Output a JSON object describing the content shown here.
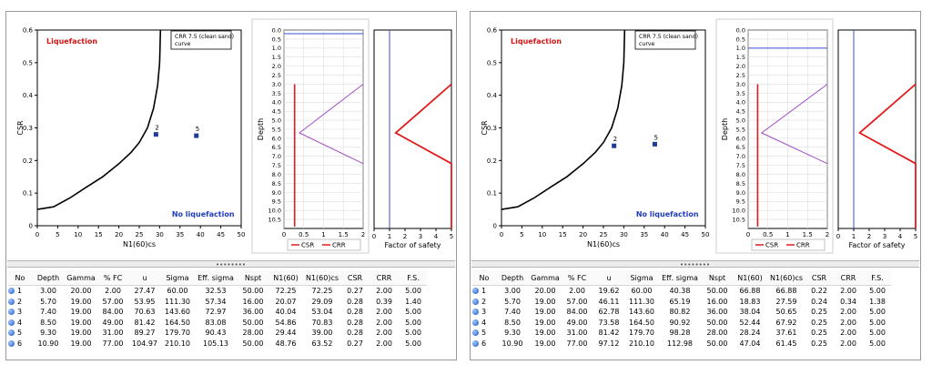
{
  "panels": [
    {
      "id": "left",
      "chart_data": [
        {
          "type": "scatter",
          "title": "",
          "xlabel": "N1(60)cs",
          "ylabel": "CSR",
          "xlim": [
            0,
            50
          ],
          "ylim": [
            0,
            0.6
          ],
          "xticks": [
            "0",
            "5",
            "10",
            "15",
            "20",
            "25",
            "30",
            "35",
            "40",
            "45",
            "50"
          ],
          "yticks": [
            "0",
            "0.1",
            "0.2",
            "0.3",
            "0.4",
            "0.5",
            "0.6"
          ],
          "legend": "CRR 7.5 (clean sand) curve",
          "region_top": "Liquefaction",
          "region_bottom": "No liquefaction",
          "curve": [
            [
              0,
              0.05
            ],
            [
              4,
              0.058
            ],
            [
              8,
              0.085
            ],
            [
              12,
              0.118
            ],
            [
              16,
              0.15
            ],
            [
              20,
              0.19
            ],
            [
              23,
              0.225
            ],
            [
              25,
              0.255
            ],
            [
              27,
              0.3
            ],
            [
              28.5,
              0.36
            ],
            [
              29.5,
              0.43
            ],
            [
              30,
              0.5
            ],
            [
              30.2,
              0.6
            ]
          ],
          "points": [
            {
              "label": "2",
              "x": 29.1,
              "y": 0.28
            },
            {
              "label": "5",
              "x": 39.0,
              "y": 0.276
            }
          ]
        },
        {
          "type": "line",
          "xlabel": "",
          "ylabel": "Depth",
          "xlim": [
            0,
            2
          ],
          "ylim": [
            0,
            11
          ],
          "xticks": [
            "0",
            "0.5",
            "1",
            "1.5",
            "2"
          ],
          "depth_ticks": [
            "0.0",
            "0.5",
            "1.0",
            "1.5",
            "2.0",
            "2.5",
            "3.0",
            "3.5",
            "4.0",
            "4.5",
            "5.0",
            "5.5",
            "6.0",
            "6.5",
            "7.0",
            "7.5",
            "8.0",
            "8.5",
            "9.0",
            "9.5",
            "10.0",
            "10.5"
          ],
          "water_table": 0.2,
          "series": [
            {
              "name": "CSR",
              "color": "#e21a1a",
              "points": [
                [
                  0.27,
                  3.0
                ],
                [
                  0.27,
                  10.9
                ]
              ]
            },
            {
              "name": "CRR",
              "color": "#a04ec4",
              "points": [
                [
                  2.0,
                  3.0
                ],
                [
                  0.39,
                  5.7
                ],
                [
                  2.0,
                  7.4
                ]
              ]
            }
          ],
          "legend_labels": [
            "CSR",
            "CRR"
          ]
        },
        {
          "type": "line",
          "xlabel": "Factor of safety",
          "xlim": [
            0,
            5
          ],
          "ylim": [
            0,
            11
          ],
          "xticks": [
            "0",
            "1",
            "2",
            "3",
            "4",
            "5"
          ],
          "reference_fs": 1.0,
          "series": [
            {
              "name": "F.S.",
              "color": "#e21a1a",
              "points": [
                [
                  5.0,
                  3.0
                ],
                [
                  1.4,
                  5.7
                ],
                [
                  5.0,
                  7.4
                ],
                [
                  5.0,
                  11
                ]
              ]
            }
          ]
        }
      ],
      "table": {
        "columns": [
          "No",
          "Depth",
          "Gamma",
          "% FC",
          "u",
          "Sigma",
          "Eff. sigma",
          "Nspt",
          "N1(60)",
          "N1(60)cs",
          "CSR",
          "CRR",
          "F.S."
        ],
        "rows": [
          [
            "1",
            "3.00",
            "20.00",
            "2.00",
            "27.47",
            "60.00",
            "32.53",
            "50.00",
            "72.25",
            "72.25",
            "0.27",
            "2.00",
            "5.00"
          ],
          [
            "2",
            "5.70",
            "19.00",
            "57.00",
            "53.95",
            "111.30",
            "57.34",
            "16.00",
            "20.07",
            "29.09",
            "0.28",
            "0.39",
            "1.40"
          ],
          [
            "3",
            "7.40",
            "19.00",
            "84.00",
            "70.63",
            "143.60",
            "72.97",
            "36.00",
            "40.04",
            "53.04",
            "0.28",
            "2.00",
            "5.00"
          ],
          [
            "4",
            "8.50",
            "19.00",
            "49.00",
            "81.42",
            "164.50",
            "83.08",
            "50.00",
            "54.86",
            "70.83",
            "0.28",
            "2.00",
            "5.00"
          ],
          [
            "5",
            "9.30",
            "19.00",
            "31.00",
            "89.27",
            "179.70",
            "90.43",
            "28.00",
            "29.44",
            "39.00",
            "0.28",
            "2.00",
            "5.00"
          ],
          [
            "6",
            "10.90",
            "19.00",
            "77.00",
            "104.97",
            "210.10",
            "105.13",
            "50.00",
            "48.76",
            "63.52",
            "0.27",
            "2.00",
            "5.00"
          ]
        ]
      }
    },
    {
      "id": "right",
      "chart_data": [
        {
          "type": "scatter",
          "title": "",
          "xlabel": "N1(60)cs",
          "ylabel": "CSR",
          "xlim": [
            0,
            50
          ],
          "ylim": [
            0,
            0.6
          ],
          "xticks": [
            "0",
            "5",
            "10",
            "15",
            "20",
            "25",
            "30",
            "35",
            "40",
            "45",
            "50"
          ],
          "yticks": [
            "0",
            "0.1",
            "0.2",
            "0.3",
            "0.4",
            "0.5",
            "0.6"
          ],
          "legend": "CRR 7.5 (clean sand) curve",
          "region_top": "Liquefaction",
          "region_bottom": "No liquefaction",
          "curve": [
            [
              0,
              0.05
            ],
            [
              4,
              0.058
            ],
            [
              8,
              0.085
            ],
            [
              12,
              0.118
            ],
            [
              16,
              0.15
            ],
            [
              20,
              0.19
            ],
            [
              23,
              0.225
            ],
            [
              25,
              0.255
            ],
            [
              27,
              0.3
            ],
            [
              28.5,
              0.36
            ],
            [
              29.5,
              0.43
            ],
            [
              30,
              0.5
            ],
            [
              30.2,
              0.6
            ]
          ],
          "points": [
            {
              "label": "2",
              "x": 27.6,
              "y": 0.245
            },
            {
              "label": "5",
              "x": 37.6,
              "y": 0.25
            }
          ]
        },
        {
          "type": "line",
          "xlabel": "",
          "ylabel": "Depth",
          "xlim": [
            0,
            2
          ],
          "ylim": [
            0,
            11
          ],
          "xticks": [
            "0",
            "0.5",
            "1",
            "1.5",
            "2"
          ],
          "depth_ticks": [
            "0.0",
            "0.5",
            "1.0",
            "1.5",
            "2.0",
            "2.5",
            "3.0",
            "3.5",
            "4.0",
            "4.5",
            "5.0",
            "5.5",
            "6.0",
            "6.5",
            "7.0",
            "7.5",
            "8.0",
            "8.5",
            "9.0",
            "9.5",
            "10.0",
            "10.5"
          ],
          "water_table": 1.0,
          "series": [
            {
              "name": "CSR",
              "color": "#e21a1a",
              "points": [
                [
                  0.24,
                  3.0
                ],
                [
                  0.24,
                  10.9
                ]
              ]
            },
            {
              "name": "CRR",
              "color": "#a04ec4",
              "points": [
                [
                  2.0,
                  3.0
                ],
                [
                  0.34,
                  5.7
                ],
                [
                  2.0,
                  7.4
                ]
              ]
            }
          ],
          "legend_labels": [
            "CSR",
            "CRR"
          ]
        },
        {
          "type": "line",
          "xlabel": "Factor of safety",
          "xlim": [
            0,
            5
          ],
          "ylim": [
            0,
            11
          ],
          "xticks": [
            "0",
            "1",
            "2",
            "3",
            "4",
            "5"
          ],
          "reference_fs": 1.0,
          "series": [
            {
              "name": "F.S.",
              "color": "#e21a1a",
              "points": [
                [
                  5.0,
                  3.0
                ],
                [
                  1.38,
                  5.7
                ],
                [
                  5.0,
                  7.4
                ],
                [
                  5.0,
                  11
                ]
              ]
            }
          ]
        }
      ],
      "table": {
        "columns": [
          "No",
          "Depth",
          "Gamma",
          "% FC",
          "u",
          "Sigma",
          "Eff. sigma",
          "Nspt",
          "N1(60)",
          "N1(60)cs",
          "CSR",
          "CRR",
          "F.S."
        ],
        "rows": [
          [
            "1",
            "3.00",
            "20.00",
            "2.00",
            "19.62",
            "60.00",
            "40.38",
            "50.00",
            "66.88",
            "66.88",
            "0.22",
            "2.00",
            "5.00"
          ],
          [
            "2",
            "5.70",
            "19.00",
            "57.00",
            "46.11",
            "111.30",
            "65.19",
            "16.00",
            "18.83",
            "27.59",
            "0.24",
            "0.34",
            "1.38"
          ],
          [
            "3",
            "7.40",
            "19.00",
            "84.00",
            "62.78",
            "143.60",
            "80.82",
            "36.00",
            "38.04",
            "50.65",
            "0.25",
            "2.00",
            "5.00"
          ],
          [
            "4",
            "8.50",
            "19.00",
            "49.00",
            "73.58",
            "164.50",
            "90.92",
            "50.00",
            "52.44",
            "67.92",
            "0.25",
            "2.00",
            "5.00"
          ],
          [
            "5",
            "9.30",
            "19.00",
            "31.00",
            "81.42",
            "179.70",
            "98.28",
            "28.00",
            "28.24",
            "37.61",
            "0.25",
            "2.00",
            "5.00"
          ],
          [
            "6",
            "10.90",
            "19.00",
            "77.00",
            "97.12",
            "210.10",
            "112.98",
            "50.00",
            "47.04",
            "61.45",
            "0.25",
            "2.00",
            "5.00"
          ]
        ]
      }
    }
  ],
  "colors": {
    "point": "#1f3c99",
    "curve": "#000000",
    "liquefaction": "#d41414",
    "no_liquefaction": "#1f3cbf",
    "water_table": "#3a4fd6",
    "grid": "#dddddd"
  }
}
